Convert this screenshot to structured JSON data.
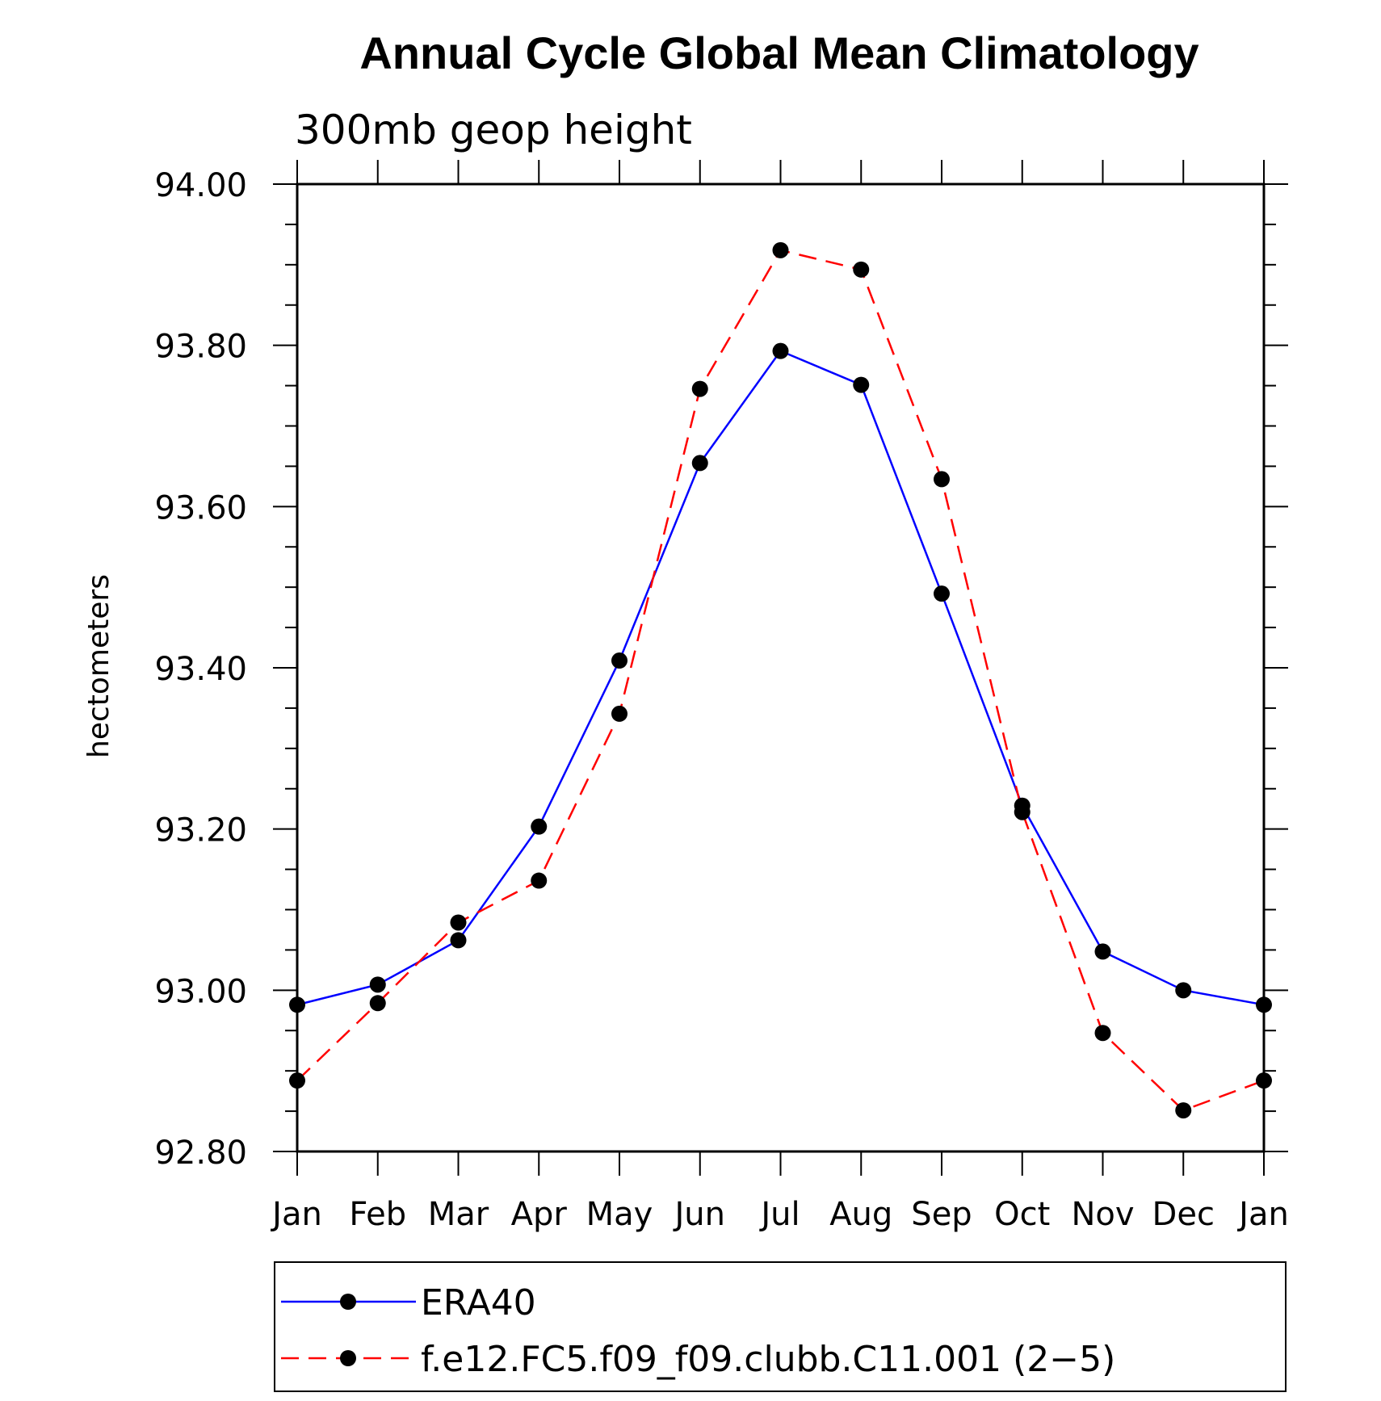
{
  "chart_data": {
    "type": "line",
    "title": "Annual Cycle Global Mean Climatology",
    "subtitle": "300mb geop height",
    "ylabel": "hectometers",
    "xlabel": "",
    "categories": [
      "Jan",
      "Feb",
      "Mar",
      "Apr",
      "May",
      "Jun",
      "Jul",
      "Aug",
      "Sep",
      "Oct",
      "Nov",
      "Dec",
      "Jan"
    ],
    "ylim": [
      92.8,
      94.0
    ],
    "yticks": [
      "92.80",
      "93.00",
      "93.20",
      "93.40",
      "93.60",
      "93.80",
      "94.00"
    ],
    "grid": false,
    "legend_position": "bottom",
    "series": [
      {
        "name": "ERA40",
        "color": "#0000ff",
        "dash": "solid",
        "values": [
          92.982,
          93.007,
          93.062,
          93.203,
          93.409,
          93.654,
          93.793,
          93.751,
          93.492,
          93.229,
          93.048,
          93.0,
          92.982
        ]
      },
      {
        "name": "f.e12.FC5.f09_f09.clubb.C11.001 (2−5)",
        "color": "#ff0000",
        "dash": "dashed",
        "values": [
          92.888,
          92.984,
          93.084,
          93.136,
          93.343,
          93.746,
          93.918,
          93.894,
          93.634,
          93.221,
          92.947,
          92.851,
          92.888
        ]
      }
    ]
  }
}
